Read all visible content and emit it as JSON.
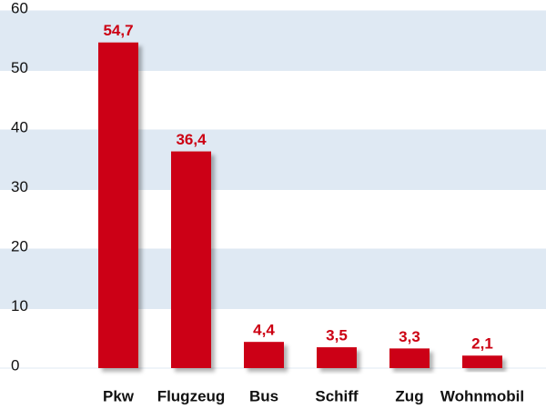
{
  "chart_data": {
    "type": "bar",
    "categories": [
      "Pkw",
      "Flugzeug",
      "Bus",
      "Schiff",
      "Zug",
      "Wohnmobil"
    ],
    "values": [
      54.7,
      36.4,
      4.4,
      3.5,
      3.3,
      2.1
    ],
    "value_labels": [
      "54,7",
      "36,4",
      "4,4",
      "3,5",
      "3,3",
      "2,1"
    ],
    "color": "#cc0012",
    "ylim": [
      0,
      60
    ],
    "yticks": [
      0,
      10,
      20,
      30,
      40,
      50,
      60
    ],
    "grid": true,
    "band_color": "#dfe9f3"
  }
}
